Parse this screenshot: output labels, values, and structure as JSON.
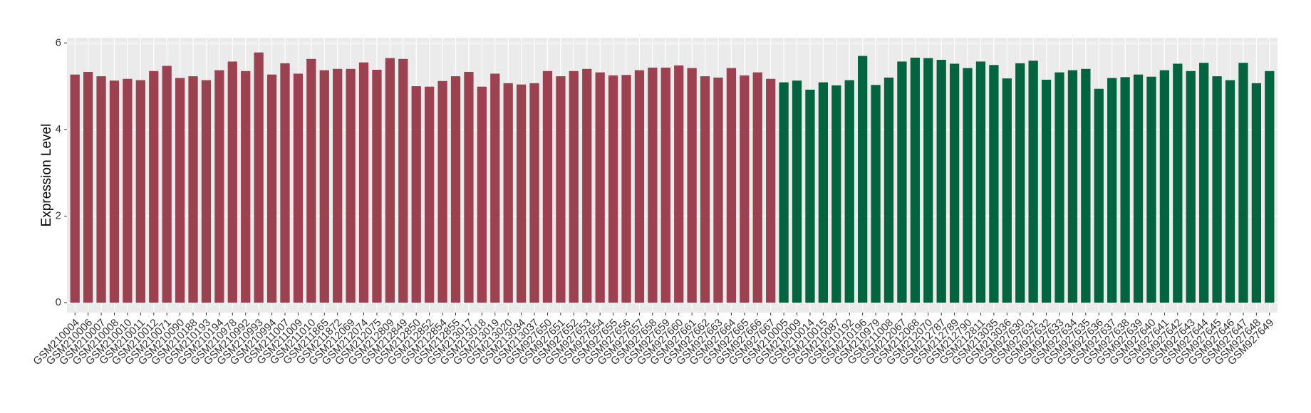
{
  "chart_data": {
    "type": "bar",
    "y_label": "Expression Level",
    "categories": [
      "GSM210004",
      "GSM210006",
      "GSM210007",
      "GSM210008",
      "GSM210010",
      "GSM210011",
      "GSM210012",
      "GSM210071",
      "GSM210090",
      "GSM210188",
      "GSM210193",
      "GSM210194",
      "GSM210978",
      "GSM210992",
      "GSM210993",
      "GSM210994",
      "GSM211007",
      "GSM211009",
      "GSM211010",
      "GSM211865",
      "GSM211872",
      "GSM212069",
      "GSM212074",
      "GSM212075",
      "GSM212809",
      "GSM212849",
      "GSM212850",
      "GSM212852",
      "GSM212854",
      "GSM212855",
      "GSM213017",
      "GSM213018",
      "GSM213019",
      "GSM213020",
      "GSM213034",
      "GSM213037",
      "GSM927650",
      "GSM927651",
      "GSM927652",
      "GSM927653",
      "GSM927654",
      "GSM927655",
      "GSM927656",
      "GSM927657",
      "GSM927658",
      "GSM927659",
      "GSM927660",
      "GSM927661",
      "GSM927662",
      "GSM927663",
      "GSM927664",
      "GSM927665",
      "GSM927666",
      "GSM927667",
      "GSM210005",
      "GSM210009",
      "GSM210014",
      "GSM210015",
      "GSM210087",
      "GSM210192",
      "GSM210196",
      "GSM210979",
      "GSM211008",
      "GSM212067",
      "GSM212068",
      "GSM212070",
      "GSM212787",
      "GSM212789",
      "GSM212790",
      "GSM212811",
      "GSM213035",
      "GSM213036",
      "GSM927630",
      "GSM927631",
      "GSM927632",
      "GSM927633",
      "GSM927634",
      "GSM927635",
      "GSM927636",
      "GSM927637",
      "GSM927638",
      "GSM927639",
      "GSM927640",
      "GSM927641",
      "GSM927642",
      "GSM927643",
      "GSM927644",
      "GSM927645",
      "GSM927646",
      "GSM927647",
      "GSM927648",
      "GSM927649"
    ],
    "values": [
      5.27,
      5.33,
      5.23,
      5.13,
      5.17,
      5.14,
      5.35,
      5.47,
      5.19,
      5.23,
      5.14,
      5.37,
      5.57,
      5.35,
      5.78,
      5.27,
      5.53,
      5.29,
      5.63,
      5.37,
      5.4,
      5.4,
      5.55,
      5.38,
      5.65,
      5.63,
      5.0,
      4.99,
      5.12,
      5.23,
      5.33,
      4.99,
      5.29,
      5.07,
      5.04,
      5.07,
      5.35,
      5.23,
      5.35,
      5.4,
      5.32,
      5.25,
      5.26,
      5.37,
      5.43,
      5.43,
      5.48,
      5.42,
      5.23,
      5.2,
      5.42,
      5.25,
      5.32,
      5.17,
      5.09,
      5.13,
      4.92,
      5.09,
      5.02,
      5.14,
      5.7,
      5.03,
      5.2,
      5.57,
      5.66,
      5.65,
      5.61,
      5.52,
      5.42,
      5.57,
      5.49,
      5.18,
      5.53,
      5.59,
      5.15,
      5.32,
      5.37,
      5.4,
      4.94,
      5.19,
      5.21,
      5.27,
      5.22,
      5.37,
      5.52,
      5.35,
      5.54,
      5.23,
      5.14,
      5.54,
      5.07,
      5.35
    ],
    "colors": [
      "#9b4150",
      "#9b4150",
      "#9b4150",
      "#9b4150",
      "#9b4150",
      "#9b4150",
      "#9b4150",
      "#9b4150",
      "#9b4150",
      "#9b4150",
      "#9b4150",
      "#9b4150",
      "#9b4150",
      "#9b4150",
      "#9b4150",
      "#9b4150",
      "#9b4150",
      "#9b4150",
      "#9b4150",
      "#9b4150",
      "#9b4150",
      "#9b4150",
      "#9b4150",
      "#9b4150",
      "#9b4150",
      "#9b4150",
      "#9b4150",
      "#9b4150",
      "#9b4150",
      "#9b4150",
      "#9b4150",
      "#9b4150",
      "#9b4150",
      "#9b4150",
      "#9b4150",
      "#9b4150",
      "#9b4150",
      "#9b4150",
      "#9b4150",
      "#9b4150",
      "#9b4150",
      "#9b4150",
      "#9b4150",
      "#9b4150",
      "#9b4150",
      "#9b4150",
      "#9b4150",
      "#9b4150",
      "#9b4150",
      "#9b4150",
      "#9b4150",
      "#9b4150",
      "#9b4150",
      "#9b4150",
      "#04643f",
      "#04643f",
      "#04643f",
      "#04643f",
      "#04643f",
      "#04643f",
      "#04643f",
      "#04643f",
      "#04643f",
      "#04643f",
      "#04643f",
      "#04643f",
      "#04643f",
      "#04643f",
      "#04643f",
      "#04643f",
      "#04643f",
      "#04643f",
      "#04643f",
      "#04643f",
      "#04643f",
      "#04643f",
      "#04643f",
      "#04643f",
      "#04643f",
      "#04643f",
      "#04643f",
      "#04643f",
      "#04643f",
      "#04643f",
      "#04643f",
      "#04643f",
      "#04643f",
      "#04643f",
      "#04643f",
      "#04643f",
      "#04643f",
      "#04643f"
    ],
    "ylim": [
      -0.23,
      6.12
    ],
    "yticks": [
      0,
      2,
      4,
      6
    ],
    "grid": true
  }
}
